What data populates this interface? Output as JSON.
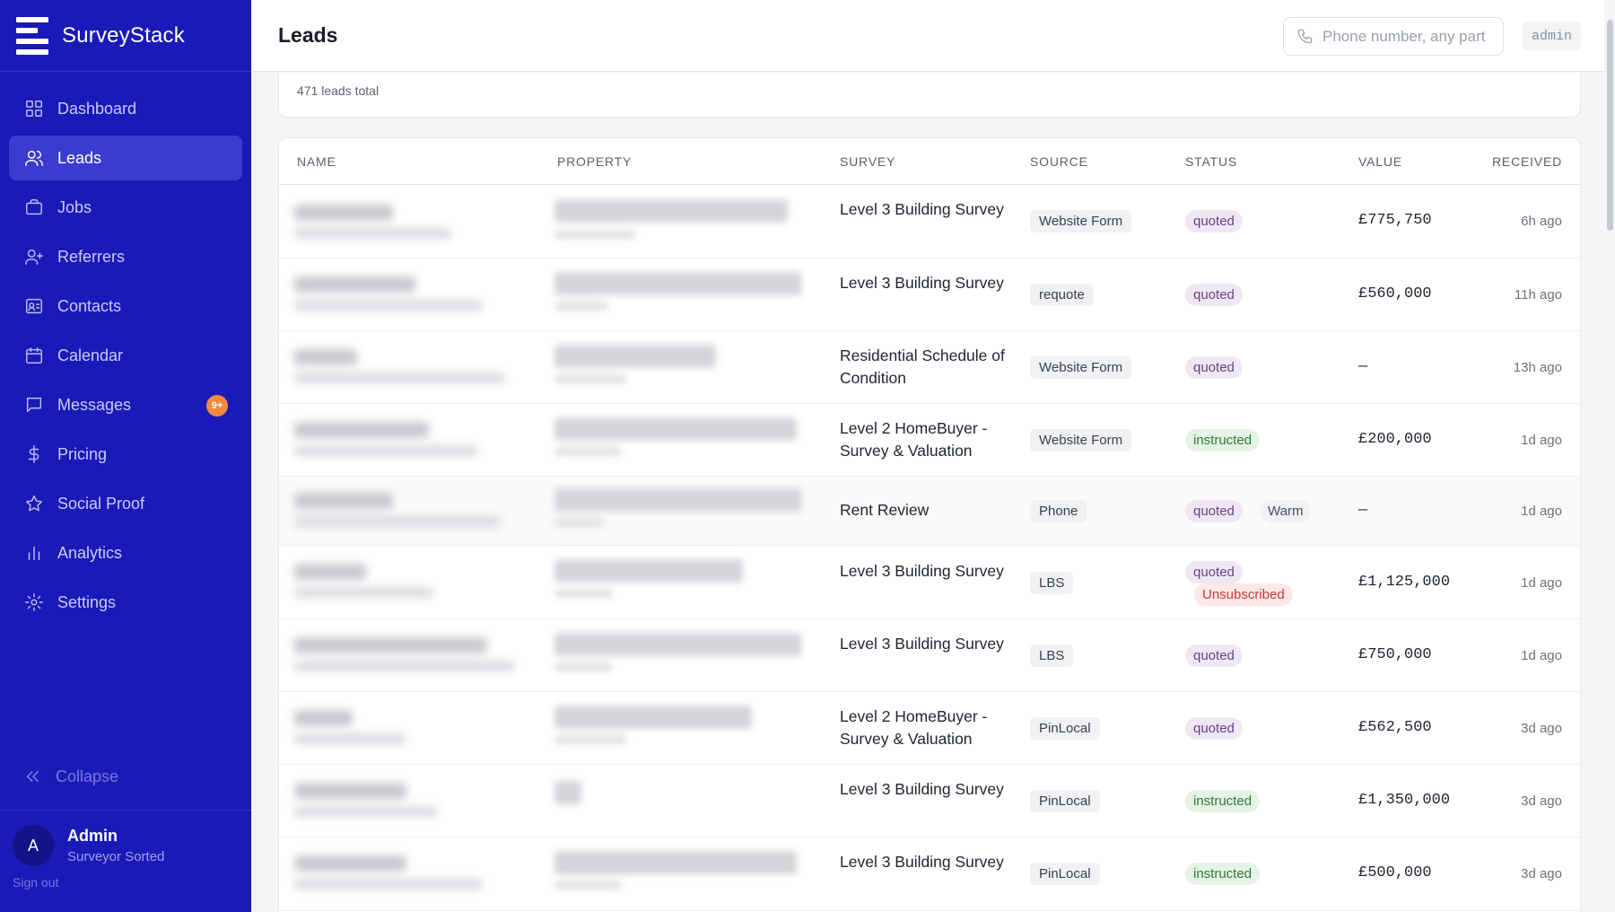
{
  "brand": {
    "name": "SurveyStack"
  },
  "sidebar": {
    "items": [
      {
        "label": "Dashboard",
        "icon": "dashboard-icon"
      },
      {
        "label": "Leads",
        "icon": "users-icon",
        "active": true
      },
      {
        "label": "Jobs",
        "icon": "briefcase-icon"
      },
      {
        "label": "Referrers",
        "icon": "user-plus-icon"
      },
      {
        "label": "Contacts",
        "icon": "contact-card-icon"
      },
      {
        "label": "Calendar",
        "icon": "calendar-icon"
      },
      {
        "label": "Messages",
        "icon": "message-icon",
        "badge": "9+"
      },
      {
        "label": "Pricing",
        "icon": "dollar-icon"
      },
      {
        "label": "Social Proof",
        "icon": "star-icon"
      },
      {
        "label": "Analytics",
        "icon": "bar-chart-icon"
      },
      {
        "label": "Settings",
        "icon": "gear-icon"
      }
    ],
    "collapse_label": "Collapse",
    "user": {
      "initial": "A",
      "name": "Admin",
      "org": "Surveyor Sorted",
      "signout": "Sign out"
    }
  },
  "header": {
    "title": "Leads",
    "search_placeholder": "Phone number, any part",
    "admin_tag": "admin"
  },
  "summary": {
    "total_text": "471 leads total"
  },
  "table": {
    "columns": [
      "NAME",
      "PROPERTY",
      "SURVEY",
      "SOURCE",
      "STATUS",
      "VALUE",
      "RECEIVED"
    ],
    "rows": [
      {
        "survey": "Level 3 Building Survey",
        "source": "Website Form",
        "status": [
          "quoted"
        ],
        "value": "£775,750",
        "received": "6h ago"
      },
      {
        "survey": "Level 3 Building Survey",
        "source": "requote",
        "status": [
          "quoted"
        ],
        "value": "£560,000",
        "received": "11h ago"
      },
      {
        "survey": "Residential Schedule of Condition",
        "source": "Website Form",
        "status": [
          "quoted"
        ],
        "value": "—",
        "received": "13h ago"
      },
      {
        "survey": "Level 2 HomeBuyer - Survey & Valuation",
        "source": "Website Form",
        "status": [
          "instructed"
        ],
        "value": "£200,000",
        "received": "1d ago"
      },
      {
        "survey": "Rent Review",
        "source": "Phone",
        "status": [
          "quoted",
          "Warm"
        ],
        "value": "—",
        "received": "1d ago"
      },
      {
        "survey": "Level 3 Building Survey",
        "source": "LBS",
        "status": [
          "quoted",
          "Unsubscribed"
        ],
        "value": "£1,125,000",
        "received": "1d ago"
      },
      {
        "survey": "Level 3 Building Survey",
        "source": "LBS",
        "status": [
          "quoted"
        ],
        "value": "£750,000",
        "received": "1d ago"
      },
      {
        "survey": "Level 2 HomeBuyer - Survey & Valuation",
        "source": "PinLocal",
        "status": [
          "quoted"
        ],
        "value": "£562,500",
        "received": "3d ago"
      },
      {
        "survey": "Level 3 Building Survey",
        "source": "PinLocal",
        "status": [
          "instructed"
        ],
        "value": "£1,350,000",
        "received": "3d ago"
      },
      {
        "survey": "Level 3 Building Survey",
        "source": "PinLocal",
        "status": [
          "instructed"
        ],
        "value": "£500,000",
        "received": "3d ago"
      }
    ]
  },
  "colors": {
    "sidebar": "#1a1ab8",
    "active_nav": "#3b3bd0",
    "badge": "#f08a3e"
  }
}
